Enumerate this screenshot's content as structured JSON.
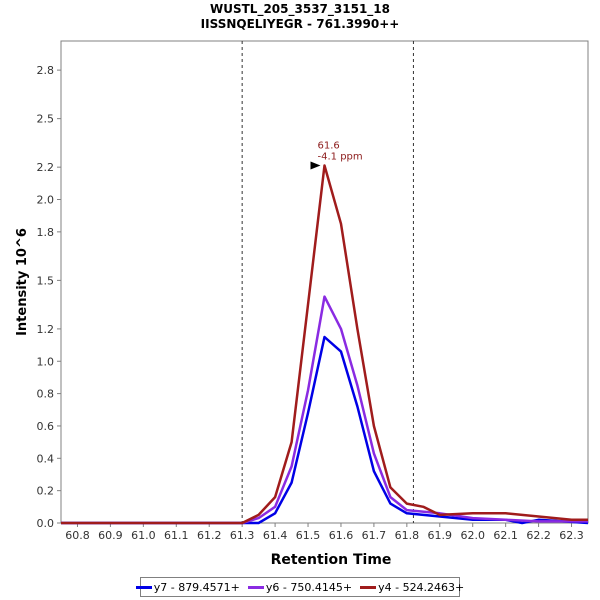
{
  "chart_data": {
    "type": "line",
    "title_line1": "WUSTL_205_3537_3151_18",
    "title_line2": "IISSNQELIYEGR - 761.3990++",
    "xlabel": "Retention Time",
    "ylabel": "Intensity 10^6",
    "xlim": [
      60.75,
      62.35
    ],
    "ylim": [
      0,
      2.98
    ],
    "xticks": [
      "60.8",
      "60.9",
      "61.0",
      "61.1",
      "61.2",
      "61.3",
      "61.4",
      "61.5",
      "61.6",
      "61.7",
      "61.8",
      "61.9",
      "62.0",
      "62.1",
      "62.2",
      "62.3"
    ],
    "yticks": [
      "0.0",
      "0.2",
      "0.4",
      "0.6",
      "0.8",
      "1.0",
      "1.2",
      "1.5",
      "1.8",
      "2.0",
      "2.2",
      "2.5",
      "2.8"
    ],
    "boundaries": [
      61.3,
      61.82
    ],
    "peak_annotation": {
      "x": 61.55,
      "y": 2.21,
      "line1": "61.6",
      "line2": "-4.1 ppm"
    },
    "series": [
      {
        "name": "y7 - 879.4571+",
        "color": "#0000e6",
        "points": [
          [
            60.75,
            0
          ],
          [
            61.35,
            0
          ],
          [
            61.4,
            0.06
          ],
          [
            61.45,
            0.25
          ],
          [
            61.5,
            0.68
          ],
          [
            61.55,
            1.15
          ],
          [
            61.6,
            1.06
          ],
          [
            61.65,
            0.72
          ],
          [
            61.7,
            0.32
          ],
          [
            61.75,
            0.12
          ],
          [
            61.8,
            0.06
          ],
          [
            61.9,
            0.04
          ],
          [
            62.0,
            0.02
          ],
          [
            62.1,
            0.02
          ],
          [
            62.15,
            0.0
          ],
          [
            62.2,
            0.02
          ],
          [
            62.35,
            0.0
          ]
        ]
      },
      {
        "name": "y6 - 750.4145+",
        "color": "#8a2be2",
        "points": [
          [
            60.75,
            0
          ],
          [
            61.3,
            0
          ],
          [
            61.35,
            0.03
          ],
          [
            61.4,
            0.1
          ],
          [
            61.45,
            0.35
          ],
          [
            61.5,
            0.82
          ],
          [
            61.55,
            1.4
          ],
          [
            61.6,
            1.2
          ],
          [
            61.65,
            0.85
          ],
          [
            61.7,
            0.43
          ],
          [
            61.75,
            0.16
          ],
          [
            61.8,
            0.08
          ],
          [
            61.9,
            0.06
          ],
          [
            62.0,
            0.03
          ],
          [
            62.1,
            0.02
          ],
          [
            62.2,
            0.01
          ],
          [
            62.35,
            0.01
          ]
        ]
      },
      {
        "name": "y4 - 524.2463+",
        "color": "#a01c1c",
        "points": [
          [
            60.75,
            0
          ],
          [
            61.3,
            0
          ],
          [
            61.35,
            0.05
          ],
          [
            61.4,
            0.16
          ],
          [
            61.45,
            0.5
          ],
          [
            61.5,
            1.35
          ],
          [
            61.55,
            2.21
          ],
          [
            61.6,
            1.85
          ],
          [
            61.65,
            1.2
          ],
          [
            61.7,
            0.6
          ],
          [
            61.75,
            0.22
          ],
          [
            61.8,
            0.12
          ],
          [
            61.85,
            0.1
          ],
          [
            61.9,
            0.05
          ],
          [
            62.0,
            0.06
          ],
          [
            62.1,
            0.06
          ],
          [
            62.2,
            0.04
          ],
          [
            62.3,
            0.02
          ],
          [
            62.35,
            0.02
          ]
        ]
      }
    ]
  }
}
